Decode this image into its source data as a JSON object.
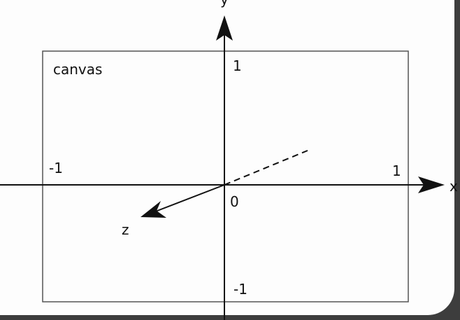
{
  "diagram": {
    "canvas_label": "canvas",
    "axes": {
      "x_name": "x",
      "y_name": "y",
      "z_name": "z"
    },
    "ticks": {
      "y_top": "1",
      "y_bottom": "-1",
      "x_left": "-1",
      "x_right": "1",
      "origin": "0"
    },
    "colors": {
      "background_panel": "#fdfdfd",
      "frame_outer": "#3d3d3d",
      "ink": "#111111"
    }
  }
}
